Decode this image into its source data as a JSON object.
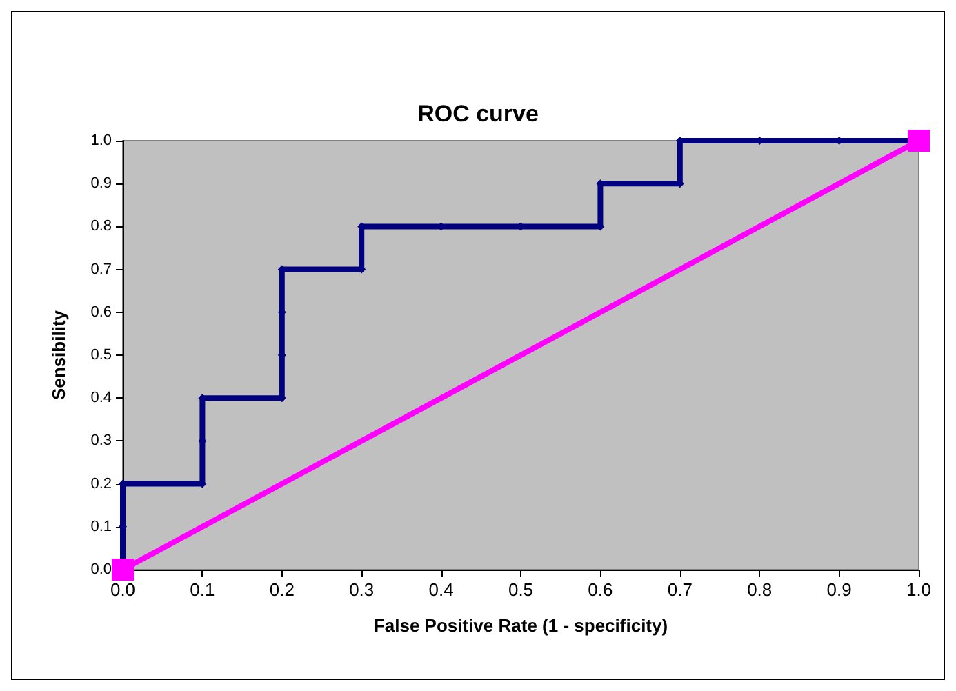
{
  "chart_data": {
    "type": "line",
    "title": "ROC curve",
    "xlabel": "False Positive Rate (1 - specificity)",
    "ylabel": "Sensibility",
    "series": [
      {
        "color": "#000080",
        "marker": "diamond",
        "x": [
          0,
          0,
          0,
          0.1,
          0.1,
          0.1,
          0.2,
          0.2,
          0.2,
          0.2,
          0.3,
          0.3,
          0.4,
          0.5,
          0.6,
          0.6,
          0.7,
          0.7,
          0.8,
          0.9,
          1.0
        ],
        "values": [
          0,
          0.1,
          0.2,
          0.2,
          0.3,
          0.4,
          0.4,
          0.5,
          0.6,
          0.7,
          0.7,
          0.8,
          0.8,
          0.8,
          0.8,
          0.9,
          0.9,
          1.0,
          1.0,
          1.0,
          1.0
        ]
      },
      {
        "color": "#ff00ff",
        "marker": "square",
        "x": [
          0,
          1
        ],
        "values": [
          0,
          1
        ]
      }
    ],
    "xlim": [
      0,
      1
    ],
    "ylim": [
      0,
      1
    ],
    "xticks": [
      {
        "value": 0,
        "label": "0.0"
      },
      {
        "value": 0.1,
        "label": "0.1"
      },
      {
        "value": 0.2,
        "label": "0.2"
      },
      {
        "value": 0.3,
        "label": "0.3"
      },
      {
        "value": 0.4,
        "label": "0.4"
      },
      {
        "value": 0.5,
        "label": "0.5"
      },
      {
        "value": 0.6,
        "label": "0.6"
      },
      {
        "value": 0.7,
        "label": "0.7"
      },
      {
        "value": 0.8,
        "label": "0.8"
      },
      {
        "value": 0.9,
        "label": "0.9"
      },
      {
        "value": 1,
        "label": "1.0"
      }
    ],
    "yticks": [
      {
        "value": 0,
        "label": "0.0"
      },
      {
        "value": 0.1,
        "label": "0.1"
      },
      {
        "value": 0.2,
        "label": "0.2"
      },
      {
        "value": 0.3,
        "label": "0.3"
      },
      {
        "value": 0.4,
        "label": "0.4"
      },
      {
        "value": 0.5,
        "label": "0.5"
      },
      {
        "value": 0.6,
        "label": "0.6"
      },
      {
        "value": 0.7,
        "label": "0.7"
      },
      {
        "value": 0.8,
        "label": "0.8"
      },
      {
        "value": 0.9,
        "label": "0.9"
      },
      {
        "value": 1,
        "label": "1.0"
      }
    ],
    "grid": false,
    "line_style": "solid"
  }
}
